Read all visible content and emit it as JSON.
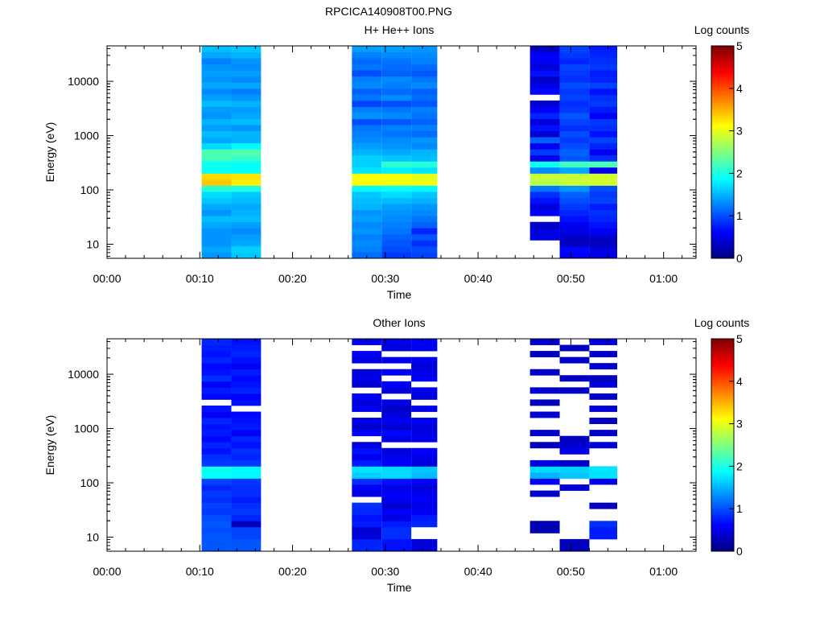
{
  "figure_title": "RPCICA140908T00.PNG",
  "colorbar": {
    "label": "Log counts",
    "ticks": [
      "0",
      "1",
      "2",
      "3",
      "4",
      "5"
    ],
    "range": [
      0,
      5
    ],
    "colormap": "jet"
  },
  "chart_data": [
    {
      "type": "heatmap",
      "title": "H+ He++ Ions",
      "xlabel": "Time",
      "ylabel": "Energy (eV)",
      "x_ticks": [
        "00:00",
        "00:10",
        "00:20",
        "00:30",
        "00:40",
        "00:50",
        "01:00"
      ],
      "y_ticks": [
        "10",
        "100",
        "1000",
        "10000"
      ],
      "y_scale": "log",
      "ylim": [
        5.5,
        45000
      ],
      "xlim_minutes": [
        0,
        63.5
      ],
      "blocks": [
        {
          "start_min": 10.2,
          "end_min": 13.4,
          "levels": [
            1.35,
            1.45,
            1.35,
            1.35,
            1.35,
            1.45,
            1.55,
            1.35,
            1.45,
            1.6,
            1.7,
            2.05,
            3.4,
            3.3,
            1.9,
            1.95,
            2.2,
            2.25,
            1.7,
            1.45,
            1.55,
            1.4,
            1.5,
            1.35,
            1.4,
            1.55,
            1.4,
            1.3,
            1.45,
            1.35,
            1.4,
            1.35,
            1.25,
            1.45,
            1.55
          ]
        },
        {
          "start_min": 13.4,
          "end_min": 16.6,
          "levels": [
            1.6,
            1.65,
            1.45,
            1.4,
            1.3,
            1.4,
            1.55,
            1.5,
            1.45,
            1.55,
            1.6,
            2.0,
            3.2,
            3.25,
            1.9,
            1.9,
            2.15,
            2.3,
            1.85,
            1.5,
            1.5,
            1.35,
            1.55,
            1.45,
            1.4,
            1.5,
            1.35,
            1.25,
            1.45,
            1.3,
            1.4,
            1.3,
            1.35,
            1.5,
            1.6
          ]
        },
        {
          "start_min": 26.4,
          "end_min": 29.6,
          "levels": [
            1.15,
            1.25,
            1.3,
            1.25,
            1.35,
            1.3,
            1.4,
            1.35,
            1.5,
            1.55,
            1.6,
            1.85,
            3.1,
            3.1,
            1.75,
            1.65,
            1.65,
            1.5,
            1.4,
            1.3,
            1.25,
            1.2,
            1.0,
            1.35,
            1.25,
            0.95,
            1.2,
            1.1,
            1.3,
            1.25,
            1.0,
            1.2,
            1.15,
            1.25,
            1.4
          ]
        },
        {
          "start_min": 29.6,
          "end_min": 32.8,
          "levels": [
            0.9,
            1.0,
            1.05,
            1.1,
            1.2,
            1.25,
            1.3,
            1.35,
            1.4,
            1.55,
            1.7,
            1.9,
            3.05,
            3.1,
            1.8,
            2.1,
            1.6,
            1.45,
            1.35,
            1.3,
            1.2,
            1.25,
            1.05,
            1.3,
            1.2,
            1.0,
            1.3,
            1.15,
            1.25,
            1.3,
            1.1,
            1.15,
            1.2,
            1.3,
            1.4
          ]
        },
        {
          "start_min": 32.8,
          "end_min": 35.6,
          "levels": [
            0.95,
            1.0,
            0.85,
            1.05,
            0.8,
            1.1,
            1.2,
            1.3,
            1.35,
            1.5,
            1.6,
            1.85,
            3.05,
            3.0,
            1.75,
            2.05,
            1.55,
            1.5,
            1.3,
            1.35,
            1.15,
            1.25,
            1.1,
            1.2,
            1.25,
            1.05,
            1.15,
            1.1,
            1.3,
            1.2,
            1.05,
            1.15,
            1.25,
            1.3,
            1.35
          ]
        },
        {
          "start_min": 45.6,
          "end_min": 48.8,
          "levels": [
            null,
            null,
            null,
            0.5,
            0.45,
            0.35,
            null,
            0.6,
            0.45,
            0.7,
            0.85,
            1.2,
            2.75,
            2.85,
            1.3,
            1.95,
            0.5,
            0.9,
            0.55,
            1.1,
            0.4,
            0.7,
            0.45,
            0.8,
            0.6,
            0.4,
            null,
            0.65,
            0.5,
            0.35,
            0.7,
            0.45,
            0.55,
            0.6,
            0.3
          ]
        },
        {
          "start_min": 48.8,
          "end_min": 52.0,
          "levels": [
            0.6,
            0.65,
            0.3,
            0.35,
            0.5,
            0.55,
            0.7,
            0.8,
            0.9,
            1.0,
            1.1,
            1.35,
            2.85,
            2.85,
            1.45,
            2.2,
            1.05,
            1.1,
            1.0,
            0.9,
            1.0,
            0.85,
            0.95,
            1.05,
            0.9,
            0.85,
            0.95,
            0.9,
            1.0,
            0.85,
            0.9,
            0.95,
            0.8,
            0.9,
            0.95
          ]
        },
        {
          "start_min": 52.0,
          "end_min": 55.0,
          "levels": [
            0.5,
            0.45,
            0.3,
            0.35,
            0.6,
            0.7,
            0.8,
            0.85,
            0.75,
            0.95,
            0.9,
            1.0,
            2.9,
            2.9,
            0.55,
            2.25,
            0.85,
            0.55,
            0.8,
            0.95,
            0.7,
            0.85,
            0.9,
            0.6,
            0.75,
            0.9,
            0.85,
            0.7,
            0.95,
            0.8,
            0.75,
            0.9,
            0.85,
            0.8,
            0.75
          ]
        }
      ]
    },
    {
      "type": "heatmap",
      "title": "Other Ions",
      "xlabel": "Time",
      "ylabel": "Energy (eV)",
      "x_ticks": [
        "00:00",
        "00:10",
        "00:20",
        "00:30",
        "00:40",
        "00:50",
        "01:00"
      ],
      "y_ticks": [
        "10",
        "100",
        "1000",
        "10000"
      ],
      "y_scale": "log",
      "ylim": [
        5.5,
        45000
      ],
      "xlim_minutes": [
        0,
        63.5
      ],
      "blocks": [
        {
          "start_min": 10.2,
          "end_min": 13.4,
          "levels": [
            1.05,
            1.05,
            1.05,
            1.0,
            1.05,
            1.0,
            0.9,
            0.95,
            0.85,
            0.9,
            0.8,
            0.95,
            1.9,
            1.95,
            0.9,
            0.85,
            0.7,
            0.8,
            0.65,
            0.75,
            0.7,
            0.8,
            0.6,
            0.7,
            null,
            0.65,
            0.75,
            0.6,
            0.85,
            0.7,
            0.65,
            0.8,
            0.7,
            0.75,
            0.8
          ]
        },
        {
          "start_min": 13.4,
          "end_min": 16.6,
          "levels": [
            1.05,
            1.05,
            0.95,
            0.95,
            0.3,
            0.8,
            0.9,
            0.85,
            0.75,
            0.85,
            0.85,
            0.9,
            1.85,
            1.85,
            0.9,
            0.8,
            0.85,
            0.7,
            0.8,
            0.6,
            0.75,
            0.7,
            0.65,
            null,
            0.7,
            0.6,
            0.8,
            0.7,
            0.65,
            0.75,
            0.6,
            0.7,
            0.8,
            0.75,
            0.7
          ]
        },
        {
          "start_min": 26.4,
          "end_min": 29.6,
          "levels": [
            0.8,
            0.8,
            0.45,
            0.4,
            0.75,
            0.7,
            0.8,
            0.85,
            null,
            0.5,
            0.6,
            0.85,
            1.65,
            1.75,
            0.75,
            0.55,
            0.7,
            0.45,
            null,
            0.6,
            0.4,
            0.5,
            null,
            0.55,
            0.45,
            0.6,
            null,
            0.4,
            0.5,
            0.45,
            null,
            0.5,
            0.6,
            null,
            0.55
          ]
        },
        {
          "start_min": 29.6,
          "end_min": 32.8,
          "levels": [
            0.7,
            0.7,
            0.85,
            0.85,
            0.75,
            0.5,
            0.6,
            0.4,
            0.55,
            0.6,
            0.5,
            0.7,
            1.7,
            1.7,
            0.6,
            0.55,
            0.45,
            null,
            0.5,
            0.65,
            0.4,
            0.55,
            0.45,
            0.35,
            0.5,
            null,
            0.45,
            0.55,
            null,
            0.6,
            null,
            0.5,
            null,
            0.45,
            0.55
          ]
        },
        {
          "start_min": 32.8,
          "end_min": 35.6,
          "levels": [
            0.45,
            0.45,
            null,
            null,
            0.8,
            0.75,
            0.6,
            0.5,
            0.6,
            0.55,
            0.45,
            0.6,
            1.55,
            1.6,
            0.45,
            0.5,
            0.6,
            null,
            0.55,
            0.5,
            0.45,
            0.6,
            null,
            0.5,
            null,
            0.45,
            0.55,
            null,
            0.6,
            0.5,
            0.45,
            0.55,
            null,
            0.5,
            0.6
          ]
        },
        {
          "start_min": 45.6,
          "end_min": 48.8,
          "levels": [
            null,
            null,
            null,
            0.25,
            0.25,
            null,
            null,
            null,
            null,
            0.35,
            null,
            0.55,
            1.5,
            1.7,
            0.45,
            null,
            null,
            0.3,
            null,
            0.35,
            null,
            null,
            0.4,
            null,
            0.3,
            null,
            0.4,
            null,
            null,
            0.35,
            null,
            null,
            0.3,
            null,
            0.4
          ]
        },
        {
          "start_min": 48.8,
          "end_min": 52.0,
          "levels": [
            0.3,
            0.3,
            null,
            null,
            null,
            null,
            null,
            null,
            null,
            null,
            0.4,
            null,
            1.6,
            1.65,
            0.35,
            null,
            0.5,
            0.4,
            0.3,
            null,
            null,
            null,
            null,
            null,
            null,
            null,
            0.35,
            null,
            0.3,
            null,
            null,
            0.35,
            null,
            0.3,
            null
          ]
        },
        {
          "start_min": 52.0,
          "end_min": 55.0,
          "levels": [
            null,
            null,
            0.75,
            0.75,
            0.85,
            null,
            null,
            0.3,
            null,
            null,
            null,
            0.5,
            1.75,
            1.75,
            null,
            null,
            null,
            0.45,
            null,
            0.35,
            null,
            0.3,
            null,
            0.4,
            null,
            0.35,
            null,
            0.45,
            0.3,
            null,
            0.4,
            null,
            0.35,
            null,
            0.45
          ]
        }
      ]
    }
  ]
}
